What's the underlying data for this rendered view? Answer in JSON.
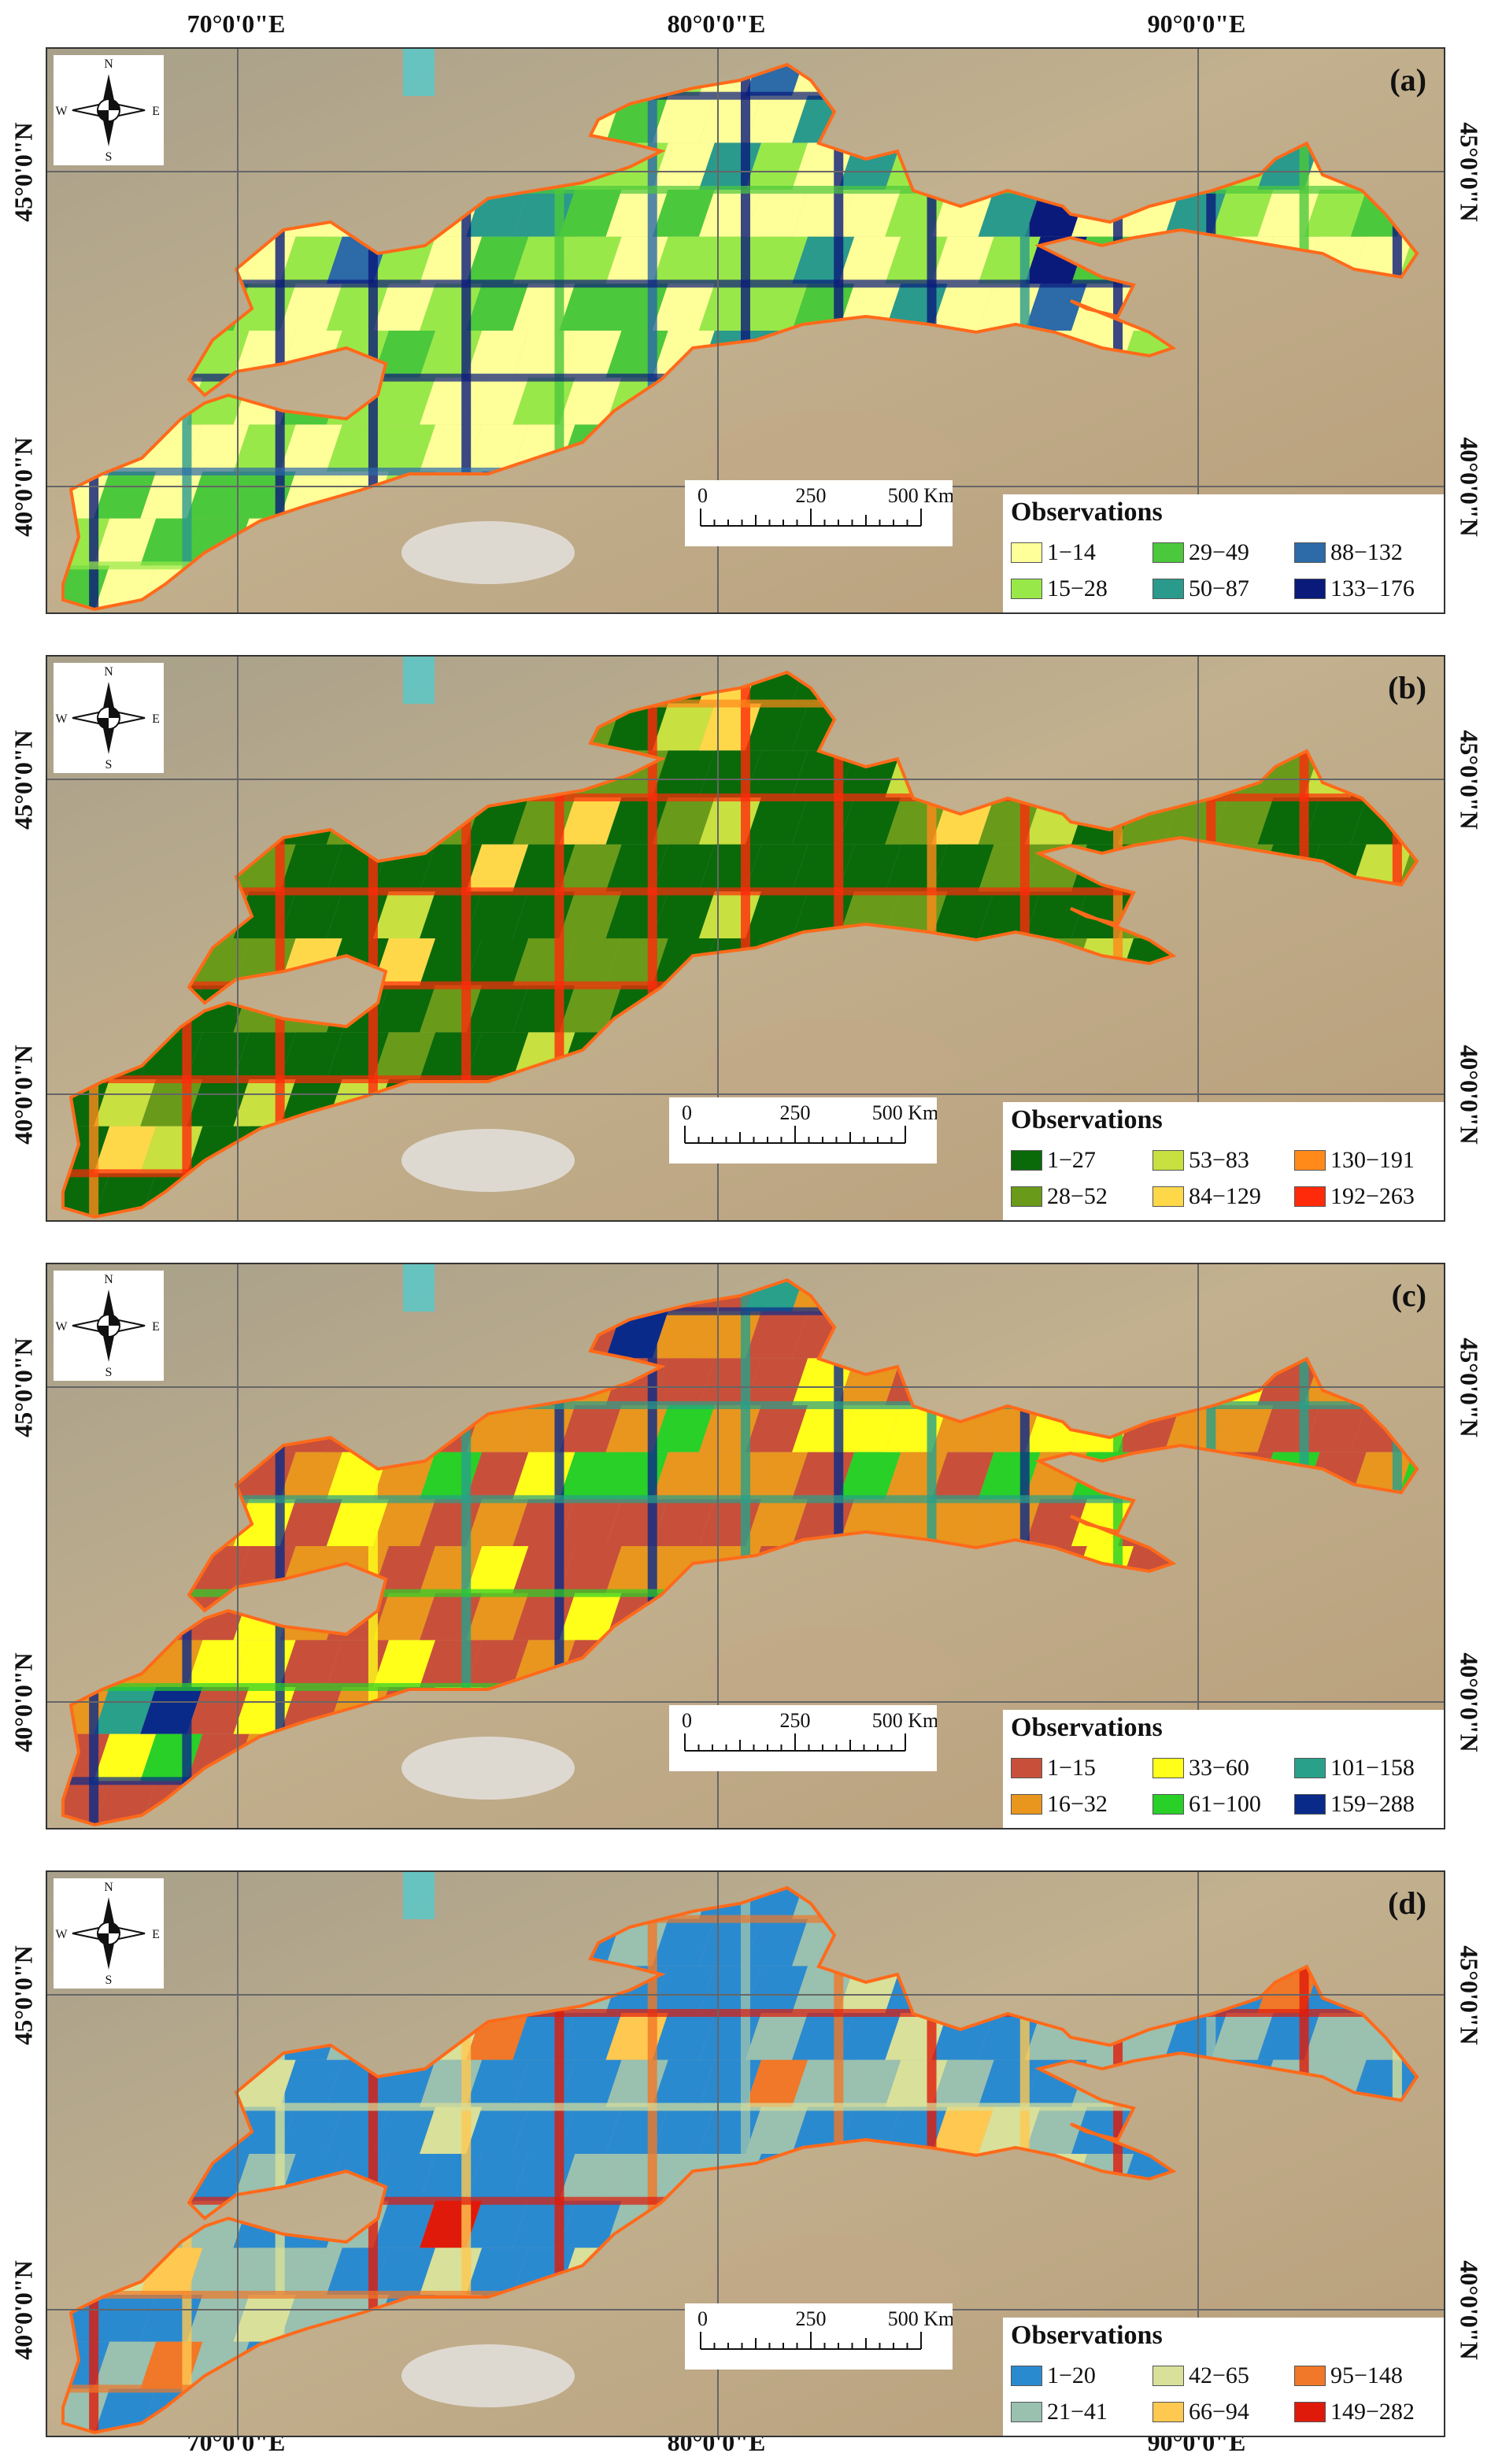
{
  "coords": {
    "top": [
      "70°0'0\"E",
      "80°0'0\"E",
      "90°0'0\"E"
    ],
    "bottom": [
      "70°0'0\"E",
      "80°0'0\"E",
      "90°0'0\"E"
    ],
    "lat_north": "45°0'0\"N",
    "lat_south": "40°0'0\"N"
  },
  "compass": {
    "n": "N",
    "s": "S",
    "e": "E",
    "w": "W"
  },
  "scalebar": {
    "labels": [
      "0",
      "250",
      "500 Km"
    ]
  },
  "colors": {
    "imagery_base": "#b8a98a",
    "boundary": "#ff6a1a",
    "grid": "#666666"
  },
  "panels": [
    {
      "label": "(a)",
      "legend_title": "Observations",
      "classes": [
        {
          "range": "1−14",
          "color": "#ffff99"
        },
        {
          "range": "15−28",
          "color": "#99e84a"
        },
        {
          "range": "29−49",
          "color": "#4cc83c"
        },
        {
          "range": "50−87",
          "color": "#2a9a8c"
        },
        {
          "range": "88−132",
          "color": "#2c6aa8"
        },
        {
          "range": "133−176",
          "color": "#0a1a7a"
        }
      ]
    },
    {
      "label": "(b)",
      "legend_title": "Observations",
      "classes": [
        {
          "range": "1−27",
          "color": "#0a6a0a"
        },
        {
          "range": "28−52",
          "color": "#6a9a1a"
        },
        {
          "range": "53−83",
          "color": "#c8e040"
        },
        {
          "range": "84−129",
          "color": "#ffd84a"
        },
        {
          "range": "130−191",
          "color": "#ff8a1a"
        },
        {
          "range": "192−263",
          "color": "#ff2a0a"
        }
      ]
    },
    {
      "label": "(c)",
      "legend_title": "Observations",
      "classes": [
        {
          "range": "1−15",
          "color": "#c8503a"
        },
        {
          "range": "16−32",
          "color": "#e8961e"
        },
        {
          "range": "33−60",
          "color": "#ffff1a"
        },
        {
          "range": "61−100",
          "color": "#28d028"
        },
        {
          "range": "101−158",
          "color": "#28a08a"
        },
        {
          "range": "159−288",
          "color": "#0a2a8a"
        }
      ]
    },
    {
      "label": "(d)",
      "legend_title": "Observations",
      "classes": [
        {
          "range": "1−20",
          "color": "#2a8ad0"
        },
        {
          "range": "21−41",
          "color": "#9ac0b0"
        },
        {
          "range": "42−65",
          "color": "#d8e09a"
        },
        {
          "range": "66−94",
          "color": "#ffc850"
        },
        {
          "range": "95−148",
          "color": "#f07828"
        },
        {
          "range": "149−282",
          "color": "#e01a0a"
        }
      ]
    }
  ]
}
